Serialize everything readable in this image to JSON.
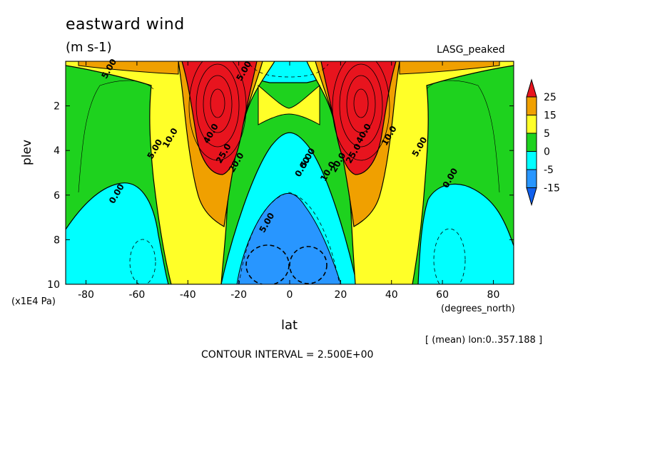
{
  "chart_data": {
    "type": "heatmap",
    "title": "eastward wind",
    "units": "(m s-1)",
    "model_label": "LASG_peaked",
    "xlabel": "lat",
    "x_units": "(degrees_north)",
    "ylabel": "plev",
    "y_units": "(x1E4 Pa)",
    "mean_note": "[ (mean) lon:0..357.188 ]",
    "contour_note": "CONTOUR INTERVAL = 2.500E+00",
    "xlim": [
      -88,
      88
    ],
    "ylim": [
      0,
      10
    ],
    "y_inverted": true,
    "x_ticks": [
      "-80",
      "-60",
      "-40",
      "-20",
      "0",
      "20",
      "40",
      "60",
      "80"
    ],
    "x_tick_values": [
      -80,
      -60,
      -40,
      -20,
      0,
      20,
      40,
      60,
      80
    ],
    "y_ticks": [
      "2",
      "4",
      "6",
      "8",
      "10"
    ],
    "y_tick_values": [
      2,
      4,
      6,
      8,
      10
    ],
    "colorbar": {
      "labels": [
        "25",
        "15",
        "5",
        "0",
        "-5",
        "-15"
      ],
      "bands": [
        {
          "name": "above 25",
          "color": "#e8141e"
        },
        {
          "name": "15 to 25",
          "color": "#f0a000"
        },
        {
          "name": "5 to 15",
          "color": "#ffff28"
        },
        {
          "name": "0 to 5",
          "color": "#1ed21e"
        },
        {
          "name": "-5 to 0",
          "color": "#00ffff"
        },
        {
          "name": "-15 to -5",
          "color": "#2896ff"
        },
        {
          "name": "below -15",
          "color": "#1060ee"
        }
      ]
    },
    "contour_labels": [
      {
        "text": "40.0",
        "lat": -30,
        "plev": 3.3
      },
      {
        "text": "40.0",
        "lat": 30,
        "plev": 3.3
      },
      {
        "text": "25.0",
        "lat": -25,
        "plev": 4.2
      },
      {
        "text": "25.0",
        "lat": 26,
        "plev": 4.2
      },
      {
        "text": "20.0",
        "lat": -20,
        "plev": 4.6
      },
      {
        "text": "20.0",
        "lat": 20,
        "plev": 4.6
      },
      {
        "text": "10.0",
        "lat": -46,
        "plev": 3.5
      },
      {
        "text": "10.0",
        "lat": 40,
        "plev": 3.4
      },
      {
        "text": "10.0",
        "lat": 16,
        "plev": 5.0
      },
      {
        "text": "5.00",
        "lat": -52,
        "plev": 4.0
      },
      {
        "text": "5.00",
        "lat": 52,
        "plev": 3.9
      },
      {
        "text": "5.00",
        "lat": 8,
        "plev": 4.4
      },
      {
        "text": "5.00",
        "lat": -8,
        "plev": 7.3
      },
      {
        "text": "5.00",
        "lat": -70,
        "plev": 0.4
      },
      {
        "text": "5.00",
        "lat": -17,
        "plev": 0.5
      },
      {
        "text": "0.00",
        "lat": -67,
        "plev": 6.0
      },
      {
        "text": "0.00",
        "lat": 64,
        "plev": 5.3
      },
      {
        "text": "0.00",
        "lat": 6,
        "plev": 4.8
      }
    ]
  }
}
